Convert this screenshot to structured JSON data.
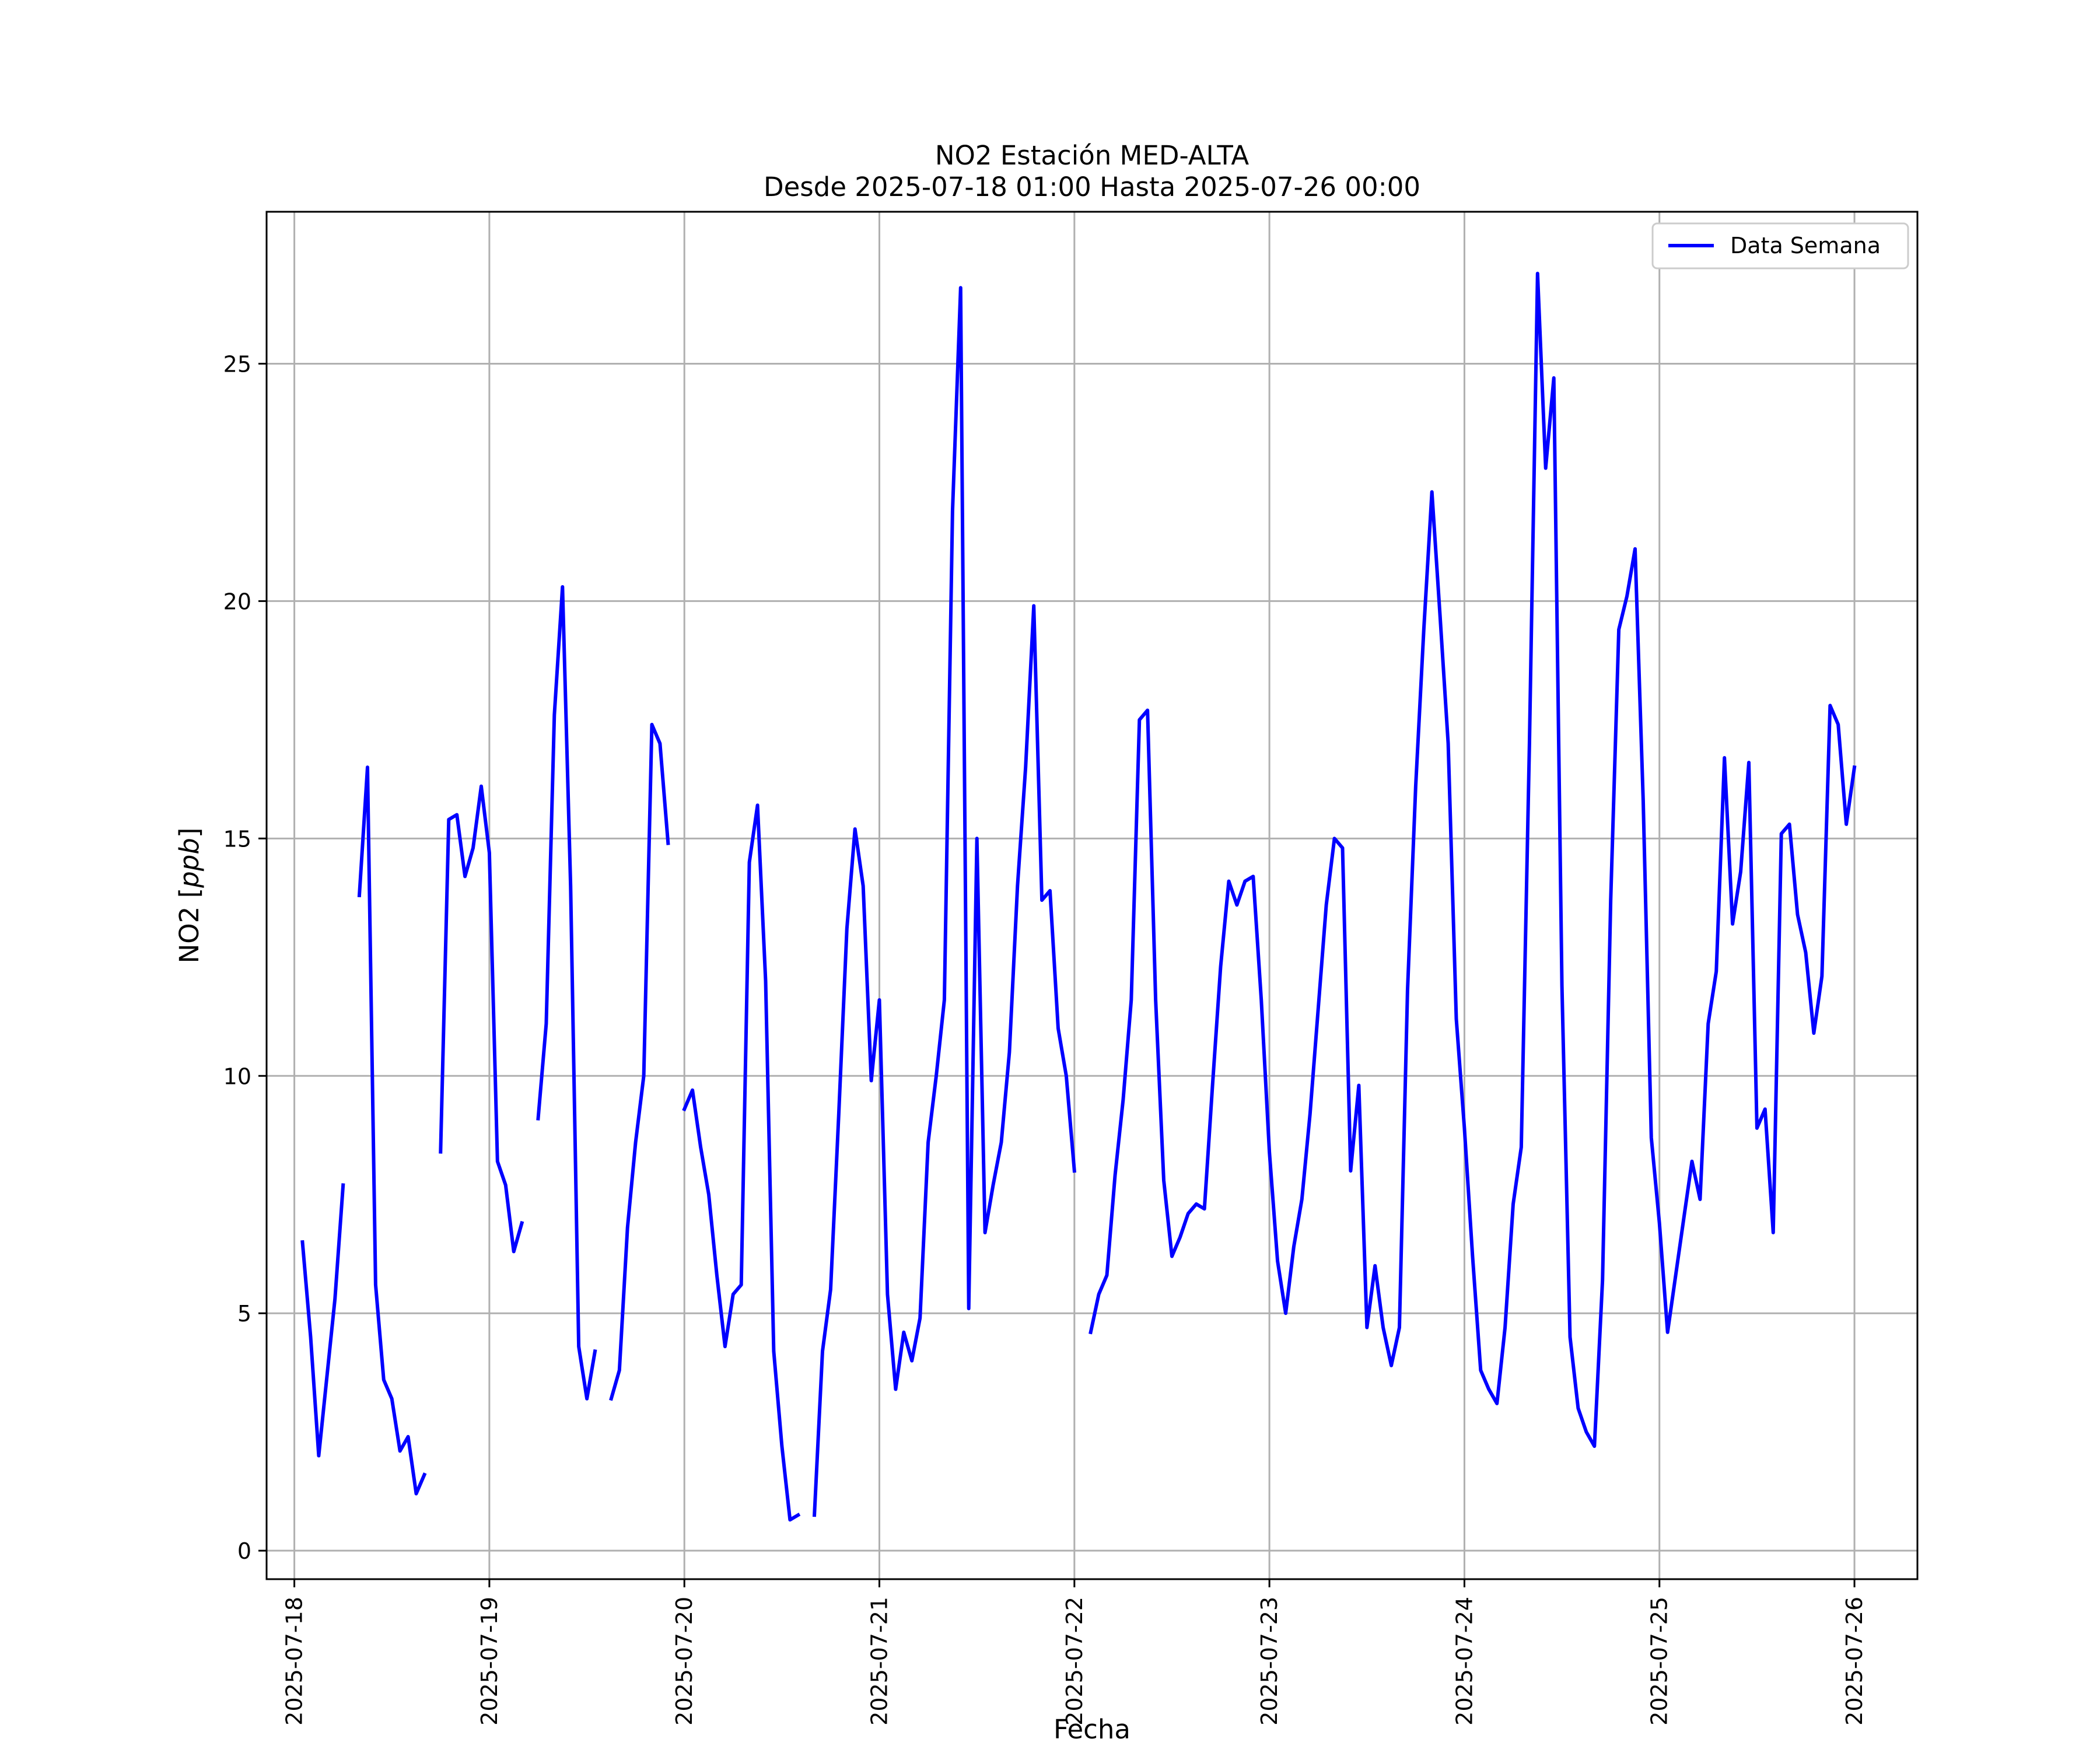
{
  "chart_data": {
    "type": "line",
    "title": "NO2 Estación MED-ALTA",
    "subtitle": "Desde 2025-07-18 01:00 Hasta 2025-07-26 00:00",
    "xlabel": "Fecha",
    "ylabel": "NO2 [ppb]",
    "ylabel_parts": {
      "main": "NO2 [",
      "unit": "ppb",
      "close": "]"
    },
    "xlim": [
      "2025-07-17 20:35",
      "2025-07-26 07:45"
    ],
    "ylim": [
      -0.6,
      28.2
    ],
    "x_ticks": [
      "2025-07-18",
      "2025-07-19",
      "2025-07-20",
      "2025-07-21",
      "2025-07-22",
      "2025-07-23",
      "2025-07-24",
      "2025-07-25",
      "2025-07-26"
    ],
    "y_ticks": [
      0,
      5,
      10,
      15,
      20,
      25
    ],
    "grid": true,
    "legend_position": "top-right",
    "line_color": "#0000ff",
    "series": [
      {
        "name": "Data Semana",
        "segments": [
          [
            [
              "2025-07-18 01:00",
              6.5
            ],
            [
              "2025-07-18 02:00",
              4.5
            ],
            [
              "2025-07-18 03:00",
              2.0
            ],
            [
              "2025-07-18 05:00",
              5.3
            ],
            [
              "2025-07-18 06:00",
              7.7
            ]
          ],
          [
            [
              "2025-07-18 08:00",
              13.8
            ],
            [
              "2025-07-18 09:00",
              16.5
            ],
            [
              "2025-07-18 10:00",
              5.6
            ],
            [
              "2025-07-18 11:00",
              3.6
            ],
            [
              "2025-07-18 12:00",
              3.2
            ],
            [
              "2025-07-18 13:00",
              2.1
            ],
            [
              "2025-07-18 14:00",
              2.4
            ],
            [
              "2025-07-18 15:00",
              1.2
            ],
            [
              "2025-07-18 16:00",
              1.6
            ]
          ],
          [
            [
              "2025-07-18 18:00",
              8.4
            ],
            [
              "2025-07-18 19:00",
              15.4
            ],
            [
              "2025-07-18 20:00",
              15.5
            ],
            [
              "2025-07-18 21:00",
              14.2
            ],
            [
              "2025-07-18 22:00",
              14.8
            ],
            [
              "2025-07-18 23:00",
              16.1
            ],
            [
              "2025-07-19 00:00",
              14.7
            ],
            [
              "2025-07-19 01:00",
              8.2
            ],
            [
              "2025-07-19 02:00",
              7.7
            ],
            [
              "2025-07-19 03:00",
              6.3
            ],
            [
              "2025-07-19 04:00",
              6.9
            ]
          ],
          [
            [
              "2025-07-19 06:00",
              9.1
            ],
            [
              "2025-07-19 07:00",
              11.1
            ],
            [
              "2025-07-19 08:00",
              17.6
            ],
            [
              "2025-07-19 09:00",
              20.3
            ],
            [
              "2025-07-19 10:00",
              14.0
            ],
            [
              "2025-07-19 11:00",
              4.3
            ],
            [
              "2025-07-19 12:00",
              3.2
            ],
            [
              "2025-07-19 13:00",
              4.2
            ]
          ],
          [
            [
              "2025-07-19 15:00",
              3.2
            ],
            [
              "2025-07-19 16:00",
              3.8
            ],
            [
              "2025-07-19 17:00",
              6.8
            ],
            [
              "2025-07-19 18:00",
              8.6
            ],
            [
              "2025-07-19 19:00",
              10.0
            ],
            [
              "2025-07-19 20:00",
              17.4
            ],
            [
              "2025-07-19 21:00",
              17.0
            ],
            [
              "2025-07-19 22:00",
              14.9
            ]
          ],
          [
            [
              "2025-07-20 00:00",
              9.3
            ],
            [
              "2025-07-20 01:00",
              9.7
            ],
            [
              "2025-07-20 02:00",
              8.5
            ],
            [
              "2025-07-20 03:00",
              7.5
            ],
            [
              "2025-07-20 04:00",
              5.8
            ],
            [
              "2025-07-20 05:00",
              4.3
            ],
            [
              "2025-07-20 06:00",
              5.4
            ],
            [
              "2025-07-20 07:00",
              5.6
            ],
            [
              "2025-07-20 08:00",
              14.5
            ],
            [
              "2025-07-20 09:00",
              15.7
            ],
            [
              "2025-07-20 10:00",
              12.0
            ],
            [
              "2025-07-20 11:00",
              4.2
            ],
            [
              "2025-07-20 12:00",
              2.2
            ],
            [
              "2025-07-20 13:00",
              0.65
            ],
            [
              "2025-07-20 14:00",
              0.75
            ]
          ],
          [
            [
              "2025-07-20 16:00",
              0.75
            ],
            [
              "2025-07-20 17:00",
              4.2
            ],
            [
              "2025-07-20 18:00",
              5.5
            ],
            [
              "2025-07-20 19:00",
              9.2
            ],
            [
              "2025-07-20 20:00",
              13.1
            ],
            [
              "2025-07-20 21:00",
              15.2
            ],
            [
              "2025-07-20 22:00",
              14.0
            ],
            [
              "2025-07-20 23:00",
              9.9
            ],
            [
              "2025-07-21 00:00",
              11.6
            ],
            [
              "2025-07-21 01:00",
              5.4
            ],
            [
              "2025-07-21 02:00",
              3.4
            ],
            [
              "2025-07-21 03:00",
              4.6
            ],
            [
              "2025-07-21 04:00",
              4.0
            ],
            [
              "2025-07-21 05:00",
              4.9
            ],
            [
              "2025-07-21 06:00",
              8.6
            ],
            [
              "2025-07-21 07:00",
              10.0
            ],
            [
              "2025-07-21 08:00",
              11.6
            ],
            [
              "2025-07-21 09:00",
              21.9
            ],
            [
              "2025-07-21 10:00",
              26.6
            ],
            [
              "2025-07-21 11:00",
              5.1
            ],
            [
              "2025-07-21 12:00",
              15.0
            ],
            [
              "2025-07-21 13:00",
              6.7
            ],
            [
              "2025-07-21 14:00",
              7.7
            ],
            [
              "2025-07-21 15:00",
              8.6
            ],
            [
              "2025-07-21 16:00",
              10.5
            ],
            [
              "2025-07-21 17:00",
              14.0
            ],
            [
              "2025-07-21 18:00",
              16.5
            ],
            [
              "2025-07-21 19:00",
              19.9
            ],
            [
              "2025-07-21 20:00",
              13.7
            ],
            [
              "2025-07-21 21:00",
              13.9
            ],
            [
              "2025-07-21 22:00",
              11.0
            ],
            [
              "2025-07-21 23:00",
              10.0
            ],
            [
              "2025-07-22 00:00",
              8.0
            ]
          ],
          [
            [
              "2025-07-22 02:00",
              4.6
            ],
            [
              "2025-07-22 03:00",
              5.4
            ],
            [
              "2025-07-22 04:00",
              5.8
            ],
            [
              "2025-07-22 05:00",
              7.9
            ],
            [
              "2025-07-22 06:00",
              9.5
            ],
            [
              "2025-07-22 07:00",
              11.6
            ],
            [
              "2025-07-22 08:00",
              17.5
            ],
            [
              "2025-07-22 09:00",
              17.7
            ],
            [
              "2025-07-22 10:00",
              11.6
            ],
            [
              "2025-07-22 11:00",
              7.8
            ],
            [
              "2025-07-22 12:00",
              6.2
            ],
            [
              "2025-07-22 13:00",
              6.6
            ],
            [
              "2025-07-22 14:00",
              7.1
            ],
            [
              "2025-07-22 15:00",
              7.3
            ],
            [
              "2025-07-22 16:00",
              7.2
            ],
            [
              "2025-07-22 17:00",
              9.8
            ],
            [
              "2025-07-22 18:00",
              12.3
            ],
            [
              "2025-07-22 19:00",
              14.1
            ],
            [
              "2025-07-22 20:00",
              13.6
            ],
            [
              "2025-07-22 21:00",
              14.1
            ],
            [
              "2025-07-22 22:00",
              14.2
            ],
            [
              "2025-07-22 23:00",
              11.6
            ],
            [
              "2025-07-23 00:00",
              8.4
            ],
            [
              "2025-07-23 01:00",
              6.1
            ],
            [
              "2025-07-23 02:00",
              5.0
            ],
            [
              "2025-07-23 03:00",
              6.4
            ],
            [
              "2025-07-23 04:00",
              7.4
            ],
            [
              "2025-07-23 05:00",
              9.2
            ],
            [
              "2025-07-23 06:00",
              11.4
            ],
            [
              "2025-07-23 07:00",
              13.6
            ],
            [
              "2025-07-23 08:00",
              15.0
            ],
            [
              "2025-07-23 09:00",
              14.8
            ],
            [
              "2025-07-23 10:00",
              8.0
            ],
            [
              "2025-07-23 11:00",
              9.8
            ],
            [
              "2025-07-23 12:00",
              4.7
            ],
            [
              "2025-07-23 13:00",
              6.0
            ],
            [
              "2025-07-23 14:00",
              4.7
            ],
            [
              "2025-07-23 15:00",
              3.9
            ],
            [
              "2025-07-23 16:00",
              4.7
            ],
            [
              "2025-07-23 17:00",
              11.8
            ],
            [
              "2025-07-23 18:00",
              16.1
            ],
            [
              "2025-07-23 19:00",
              19.4
            ],
            [
              "2025-07-23 20:00",
              22.3
            ],
            [
              "2025-07-23 21:00",
              19.7
            ],
            [
              "2025-07-23 22:00",
              17.0
            ],
            [
              "2025-07-23 23:00",
              11.2
            ],
            [
              "2025-07-24 00:00",
              8.9
            ],
            [
              "2025-07-24 01:00",
              6.2
            ],
            [
              "2025-07-24 02:00",
              3.8
            ],
            [
              "2025-07-24 03:00",
              3.4
            ],
            [
              "2025-07-24 04:00",
              3.1
            ],
            [
              "2025-07-24 05:00",
              4.7
            ],
            [
              "2025-07-24 06:00",
              7.3
            ],
            [
              "2025-07-24 07:00",
              8.5
            ],
            [
              "2025-07-24 08:00",
              17.0
            ],
            [
              "2025-07-24 09:00",
              26.9
            ],
            [
              "2025-07-24 10:00",
              22.8
            ],
            [
              "2025-07-24 11:00",
              24.7
            ],
            [
              "2025-07-24 12:00",
              11.9
            ],
            [
              "2025-07-24 13:00",
              4.5
            ],
            [
              "2025-07-24 14:00",
              3.0
            ],
            [
              "2025-07-24 15:00",
              2.5
            ],
            [
              "2025-07-24 16:00",
              2.2
            ],
            [
              "2025-07-24 17:00",
              5.7
            ],
            [
              "2025-07-24 18:00",
              13.7
            ],
            [
              "2025-07-24 19:00",
              19.4
            ],
            [
              "2025-07-24 20:00",
              20.1
            ],
            [
              "2025-07-24 21:00",
              21.1
            ],
            [
              "2025-07-24 22:00",
              15.8
            ],
            [
              "2025-07-24 23:00",
              8.7
            ],
            [
              "2025-07-25 00:00",
              6.9
            ],
            [
              "2025-07-25 01:00",
              4.6
            ],
            [
              "2025-07-25 02:00",
              5.8
            ],
            [
              "2025-07-25 03:00",
              7.0
            ],
            [
              "2025-07-25 04:00",
              8.2
            ],
            [
              "2025-07-25 05:00",
              7.4
            ],
            [
              "2025-07-25 06:00",
              11.1
            ],
            [
              "2025-07-25 07:00",
              12.2
            ],
            [
              "2025-07-25 08:00",
              16.7
            ],
            [
              "2025-07-25 09:00",
              13.2
            ],
            [
              "2025-07-25 10:00",
              14.3
            ],
            [
              "2025-07-25 11:00",
              16.6
            ],
            [
              "2025-07-25 12:00",
              8.9
            ],
            [
              "2025-07-25 13:00",
              9.3
            ],
            [
              "2025-07-25 14:00",
              6.7
            ],
            [
              "2025-07-25 15:00",
              15.1
            ],
            [
              "2025-07-25 16:00",
              15.3
            ],
            [
              "2025-07-25 17:00",
              13.4
            ],
            [
              "2025-07-25 18:00",
              12.6
            ],
            [
              "2025-07-25 19:00",
              10.9
            ],
            [
              "2025-07-25 20:00",
              12.1
            ],
            [
              "2025-07-25 21:00",
              17.8
            ],
            [
              "2025-07-25 22:00",
              17.4
            ],
            [
              "2025-07-25 23:00",
              15.3
            ],
            [
              "2025-07-26 00:00",
              16.5
            ]
          ]
        ]
      }
    ]
  }
}
